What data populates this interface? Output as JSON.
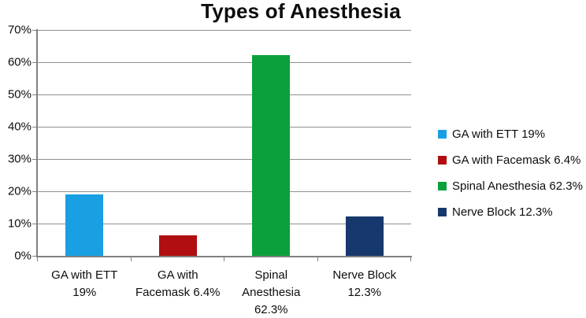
{
  "title": "Types of Anesthesia",
  "chart_data": {
    "type": "bar",
    "title": "Types of Anesthesia",
    "categories": [
      "GA with ETT 19%",
      "GA with Facemask 6.4%",
      "Spinal Anesthesia 62.3%",
      "Nerve Block 12.3%"
    ],
    "category_label_lines": [
      [
        "GA with ETT",
        "19%"
      ],
      [
        "GA with",
        "Facemask 6.4%"
      ],
      [
        "Spinal",
        "Anesthesia",
        "62.3%"
      ],
      [
        "Nerve Block",
        "12.3%"
      ]
    ],
    "values": [
      19,
      6.4,
      62.3,
      12.3
    ],
    "value_labels": [
      "19%",
      "6.4%",
      "62.3%",
      "12.3%"
    ],
    "bar_colors": [
      "#1A9FE3",
      "#B00E10",
      "#0CA03C",
      "#17386D"
    ],
    "xlabel": "",
    "ylabel": "",
    "ylim": [
      0,
      70
    ],
    "y_tick_labels": [
      "70%",
      "60%",
      "50%",
      "40%",
      "30%",
      "20%",
      "10%",
      "0%"
    ],
    "y_tick_values": [
      70,
      60,
      50,
      40,
      30,
      20,
      10,
      0
    ],
    "grid": true,
    "legend_position": "right",
    "legend": [
      {
        "label": "GA with ETT 19%",
        "color": "#1A9FE3"
      },
      {
        "label": "GA with Facemask 6.4%",
        "color": "#B00E10"
      },
      {
        "label": "Spinal Anesthesia 62.3%",
        "color": "#0CA03C"
      },
      {
        "label": "Nerve Block 12.3%",
        "color": "#17386D"
      }
    ]
  },
  "colors": {
    "background": "#FFFFFF",
    "text": "#0D0D0D",
    "axis": "#808080",
    "gridline": "#909090"
  }
}
